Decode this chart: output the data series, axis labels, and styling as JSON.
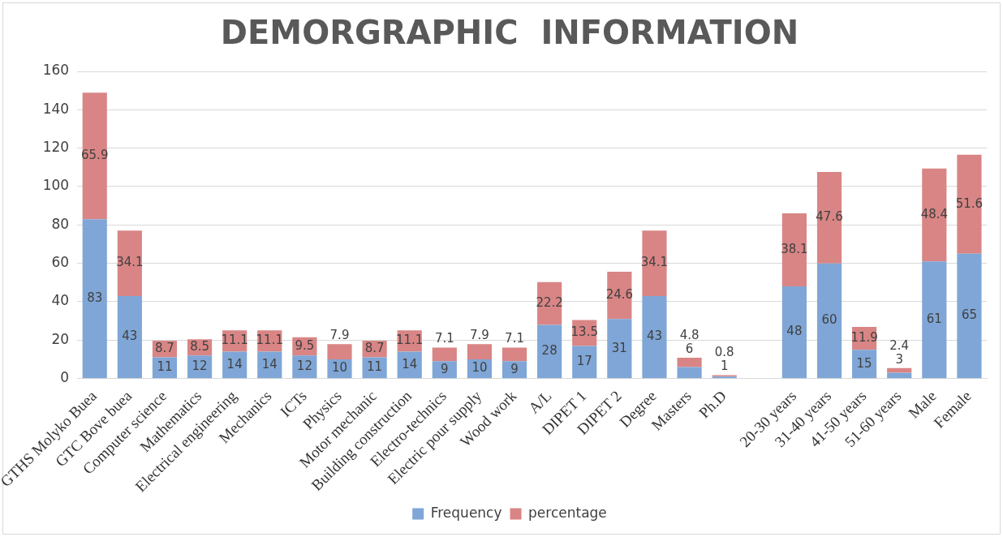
{
  "chart_data": {
    "type": "bar",
    "title": "DEMORGRAPHIC  INFORMATION",
    "stacked": true,
    "categories": [
      "GTHS Molyko Buea",
      "GTC Bove buea",
      "Computer science",
      "Mathematics",
      "Electrical engineering",
      "Mechanics",
      "ICTs",
      "Physics",
      "Motor mechanic",
      "Building construction",
      "Electro-technics",
      "Electric pour supply",
      "Wood work",
      "A/L",
      "DIPET 1",
      "DIPET 2",
      "Degree",
      "Masters",
      "Ph.D",
      null,
      "20-30 years",
      "31-40 years",
      "41-50 years",
      "51-60 years",
      "Male",
      "Female"
    ],
    "series": [
      {
        "name": "Frequency",
        "color": "#7fa6d6",
        "values": [
          83,
          43,
          11,
          12,
          14,
          14,
          12,
          10,
          11,
          14,
          9,
          10,
          9,
          28,
          17,
          31,
          43,
          6,
          1,
          null,
          48,
          60,
          15,
          3,
          61,
          65
        ]
      },
      {
        "name": "percentage",
        "color": "#d98585",
        "values": [
          65.9,
          34.1,
          8.7,
          8.5,
          11.1,
          11.1,
          9.5,
          7.9,
          8.7,
          11.1,
          7.1,
          7.9,
          7.1,
          22.2,
          13.5,
          24.6,
          34.1,
          4.8,
          0.8,
          null,
          38.1,
          47.6,
          11.9,
          2.4,
          48.4,
          51.6
        ]
      }
    ],
    "ylim": [
      0,
      160
    ],
    "yticks": [
      0,
      20,
      40,
      60,
      80,
      100,
      120,
      140,
      160
    ],
    "grid": "y",
    "legend": "bottom",
    "data_labels": true
  }
}
